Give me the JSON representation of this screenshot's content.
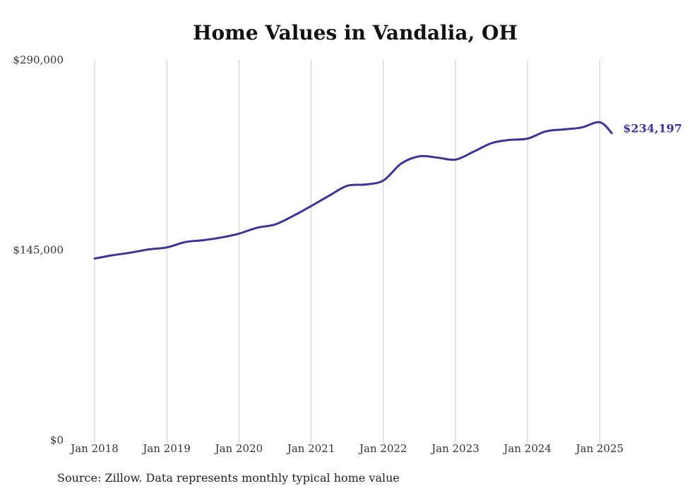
{
  "chart_data": {
    "type": "line",
    "title": "Home Values in Vandalia, OH",
    "source": "Source: Zillow. Data represents monthly typical home value",
    "xlabel": "",
    "ylabel": "",
    "ylim": [
      0,
      290000
    ],
    "y_ticks": [
      {
        "value": 0,
        "label": "$0"
      },
      {
        "value": 145000,
        "label": "$145,000"
      },
      {
        "value": 290000,
        "label": "$290,000"
      }
    ],
    "x_ticks": [
      {
        "date": "2018-01",
        "label": "Jan 2018"
      },
      {
        "date": "2019-01",
        "label": "Jan 2019"
      },
      {
        "date": "2020-01",
        "label": "Jan 2020"
      },
      {
        "date": "2021-01",
        "label": "Jan 2021"
      },
      {
        "date": "2022-01",
        "label": "Jan 2022"
      },
      {
        "date": "2023-01",
        "label": "Jan 2023"
      },
      {
        "date": "2024-01",
        "label": "Jan 2024"
      },
      {
        "date": "2025-01",
        "label": "Jan 2025"
      }
    ],
    "grid": "vertical",
    "line_color": "#3a3494",
    "end_label": "$234,197",
    "series": [
      {
        "x": [
          "2018-01",
          "2018-04",
          "2018-07",
          "2018-10",
          "2019-01",
          "2019-04",
          "2019-07",
          "2019-10",
          "2020-01",
          "2020-04",
          "2020-07",
          "2020-10",
          "2021-01",
          "2021-04",
          "2021-07",
          "2021-10",
          "2022-01",
          "2022-04",
          "2022-07",
          "2022-10",
          "2023-01",
          "2023-04",
          "2023-07",
          "2023-10",
          "2024-01",
          "2024-04",
          "2024-07",
          "2024-10",
          "2025-01",
          "2025-03"
        ],
        "values": [
          138500,
          141000,
          143000,
          145500,
          147000,
          151000,
          152500,
          154500,
          157500,
          162000,
          164500,
          171000,
          178500,
          186500,
          194000,
          195000,
          198000,
          211000,
          216500,
          215500,
          214000,
          220000,
          226500,
          229000,
          230000,
          235500,
          237000,
          238500,
          242500,
          234197
        ]
      }
    ]
  }
}
